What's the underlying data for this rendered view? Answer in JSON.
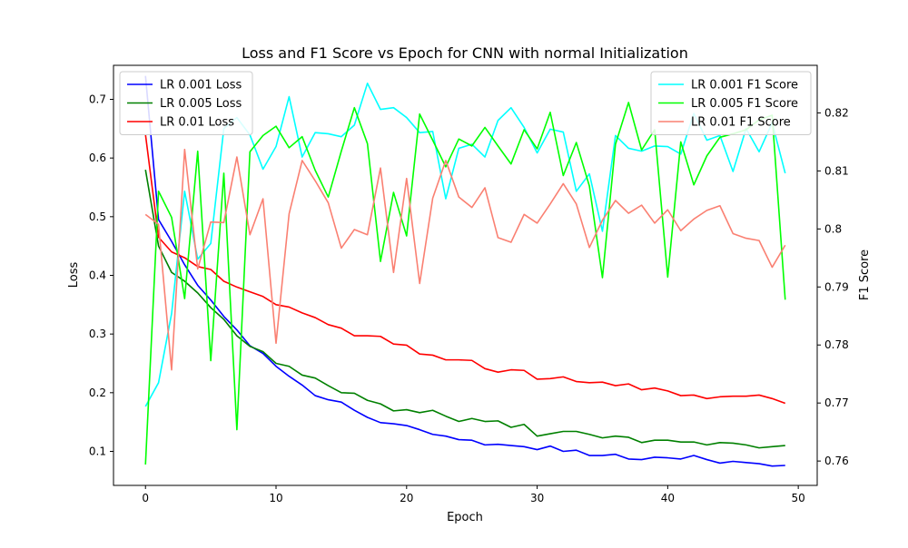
{
  "chart_data": {
    "type": "line",
    "title": "Loss and F1 Score vs Epoch for CNN with normal Initialization",
    "xlabel": "Epoch",
    "ylabel": "Loss",
    "y2label": "F1 Score",
    "xlim": [
      -2.45,
      51.45
    ],
    "ylim": [
      0.042,
      0.758
    ],
    "y2lim": [
      0.7558,
      0.8282
    ],
    "x_ticks": [
      0,
      10,
      20,
      30,
      40,
      50
    ],
    "y_ticks": [
      0.1,
      0.2,
      0.3,
      0.4,
      0.5,
      0.6,
      0.7
    ],
    "y2_ticks": [
      0.76,
      0.77,
      0.78,
      0.79,
      0.8,
      0.81,
      0.82
    ],
    "grid": false,
    "legend_loss_placement": "top-left",
    "legend_f1_placement": "top-right",
    "x": [
      0,
      1,
      2,
      3,
      4,
      5,
      6,
      7,
      8,
      9,
      10,
      11,
      12,
      13,
      14,
      15,
      16,
      17,
      18,
      19,
      20,
      21,
      22,
      23,
      24,
      25,
      26,
      27,
      28,
      29,
      30,
      31,
      32,
      33,
      34,
      35,
      36,
      37,
      38,
      39,
      40,
      41,
      42,
      43,
      44,
      45,
      46,
      47,
      48,
      49
    ],
    "loss_series": [
      {
        "name": "LR 0.001 Loss",
        "color": "#0000ff",
        "values": [
          0.74,
          0.495,
          0.458,
          0.418,
          0.383,
          0.358,
          0.33,
          0.307,
          0.28,
          0.267,
          0.245,
          0.228,
          0.213,
          0.195,
          0.188,
          0.184,
          0.17,
          0.158,
          0.149,
          0.147,
          0.144,
          0.137,
          0.129,
          0.126,
          0.12,
          0.119,
          0.111,
          0.112,
          0.11,
          0.108,
          0.103,
          0.109,
          0.1,
          0.102,
          0.093,
          0.093,
          0.095,
          0.087,
          0.086,
          0.09,
          0.089,
          0.087,
          0.093,
          0.086,
          0.08,
          0.083,
          0.081,
          0.079,
          0.075,
          0.076
        ]
      },
      {
        "name": "LR 0.005 Loss",
        "color": "#008000",
        "values": [
          0.58,
          0.45,
          0.405,
          0.39,
          0.37,
          0.345,
          0.325,
          0.297,
          0.279,
          0.27,
          0.25,
          0.245,
          0.23,
          0.225,
          0.212,
          0.2,
          0.199,
          0.187,
          0.181,
          0.169,
          0.171,
          0.166,
          0.17,
          0.16,
          0.151,
          0.156,
          0.151,
          0.152,
          0.141,
          0.146,
          0.126,
          0.13,
          0.134,
          0.134,
          0.129,
          0.123,
          0.126,
          0.124,
          0.115,
          0.119,
          0.119,
          0.116,
          0.116,
          0.111,
          0.115,
          0.114,
          0.111,
          0.106,
          0.108,
          0.11
        ]
      },
      {
        "name": "LR 0.01 Loss",
        "color": "#ff0000",
        "values": [
          0.64,
          0.465,
          0.44,
          0.43,
          0.415,
          0.41,
          0.39,
          0.38,
          0.372,
          0.364,
          0.35,
          0.346,
          0.336,
          0.328,
          0.316,
          0.31,
          0.297,
          0.297,
          0.296,
          0.283,
          0.281,
          0.266,
          0.264,
          0.256,
          0.256,
          0.255,
          0.241,
          0.235,
          0.239,
          0.238,
          0.223,
          0.224,
          0.227,
          0.219,
          0.217,
          0.218,
          0.212,
          0.215,
          0.205,
          0.208,
          0.203,
          0.195,
          0.196,
          0.19,
          0.193,
          0.194,
          0.194,
          0.196,
          0.19,
          0.182
        ]
      }
    ],
    "f1_series": [
      {
        "name": "LR 0.001 F1 Score",
        "color": "#00ffff",
        "values": [
          0.7694,
          0.7735,
          0.7854,
          0.8065,
          0.7948,
          0.7975,
          0.8173,
          0.8192,
          0.8162,
          0.8103,
          0.8142,
          0.8228,
          0.8124,
          0.8166,
          0.8164,
          0.8159,
          0.8179,
          0.8251,
          0.8206,
          0.8209,
          0.8192,
          0.8166,
          0.8168,
          0.8052,
          0.8139,
          0.8146,
          0.8124,
          0.8187,
          0.8209,
          0.8175,
          0.8131,
          0.8172,
          0.8167,
          0.8065,
          0.8095,
          0.7996,
          0.8161,
          0.8139,
          0.8134,
          0.8143,
          0.8142,
          0.8129,
          0.8199,
          0.8153,
          0.8161,
          0.8099,
          0.8173,
          0.8133,
          0.8183,
          0.8096
        ]
      },
      {
        "name": "LR 0.005 F1 Score",
        "color": "#00ff00",
        "values": [
          0.7594,
          0.8065,
          0.802,
          0.788,
          0.8134,
          0.7773,
          0.8096,
          0.7654,
          0.8133,
          0.8161,
          0.8177,
          0.814,
          0.8159,
          0.8101,
          0.8055,
          0.8134,
          0.8209,
          0.8147,
          0.7944,
          0.8063,
          0.7988,
          0.8198,
          0.8153,
          0.8107,
          0.8155,
          0.8143,
          0.8175,
          0.8143,
          0.8112,
          0.8171,
          0.8138,
          0.8201,
          0.8092,
          0.8149,
          0.8074,
          0.7916,
          0.8146,
          0.8218,
          0.8136,
          0.8171,
          0.7917,
          0.815,
          0.8076,
          0.8126,
          0.8158,
          0.8164,
          0.8171,
          0.8188,
          0.8196,
          0.7878
        ]
      },
      {
        "name": "LR 0.01 F1 Score",
        "color": "#fa8072",
        "values": [
          0.8025,
          0.8008,
          0.7757,
          0.8137,
          0.7931,
          0.8012,
          0.8011,
          0.8124,
          0.799,
          0.8052,
          0.7803,
          0.8026,
          0.8118,
          0.8083,
          0.8045,
          0.7967,
          0.7999,
          0.799,
          0.8105,
          0.7925,
          0.8087,
          0.7906,
          0.8053,
          0.8118,
          0.8055,
          0.8037,
          0.8071,
          0.7985,
          0.7977,
          0.8025,
          0.801,
          0.8043,
          0.8078,
          0.8043,
          0.7968,
          0.8015,
          0.8049,
          0.8027,
          0.8041,
          0.801,
          0.8033,
          0.7997,
          0.8017,
          0.8032,
          0.804,
          0.7992,
          0.7984,
          0.798,
          0.7934,
          0.7972
        ]
      }
    ]
  }
}
